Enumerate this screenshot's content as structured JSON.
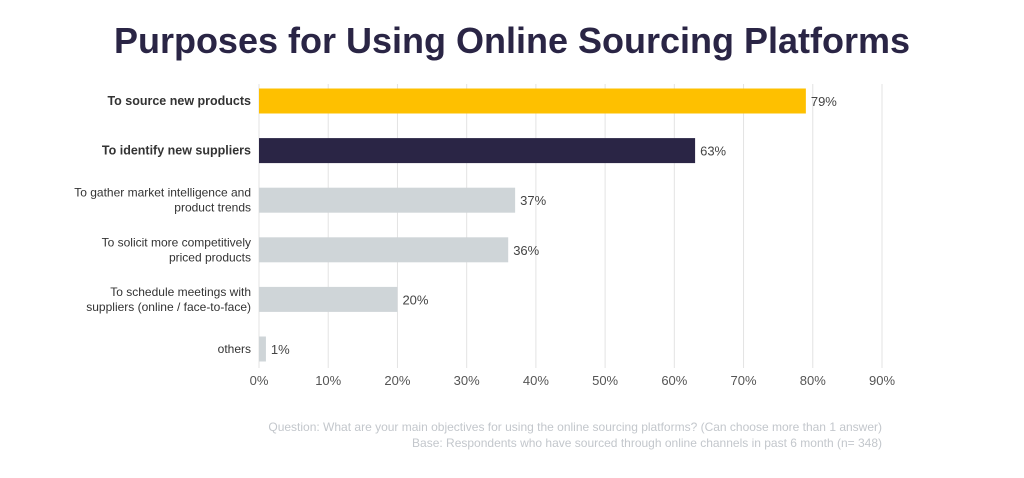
{
  "chart_data": {
    "type": "bar",
    "orientation": "horizontal",
    "title": "Purposes for Using Online Sourcing Platforms",
    "categories": [
      "To source new products",
      "To identify new suppliers",
      "To gather market intelligence and product trends",
      "To solicit more competitively priced products",
      "To schedule meetings with suppliers (online / face-to-face)",
      "others"
    ],
    "category_lines": [
      [
        "To source new products"
      ],
      [
        "To identify new suppliers"
      ],
      [
        "To gather market intelligence and",
        "product trends"
      ],
      [
        "To solicit more competitively",
        "priced products"
      ],
      [
        "To schedule meetings with",
        "suppliers (online / face-to-face)"
      ],
      [
        "others"
      ]
    ],
    "values": [
      79,
      63,
      37,
      36,
      20,
      1
    ],
    "value_labels": [
      "79%",
      "63%",
      "37%",
      "36%",
      "20%",
      "1%"
    ],
    "bar_colors": [
      "#fec000",
      "#2a2545",
      "#cfd5d8",
      "#cfd5d8",
      "#cfd5d8",
      "#cfd5d8"
    ],
    "bold_categories": [
      true,
      true,
      false,
      false,
      false,
      false
    ],
    "xlim": [
      0,
      90
    ],
    "x_ticks": [
      0,
      10,
      20,
      30,
      40,
      50,
      60,
      70,
      80,
      90
    ],
    "x_tick_labels": [
      "0%",
      "10%",
      "20%",
      "30%",
      "40%",
      "50%",
      "60%",
      "70%",
      "80%",
      "90%"
    ],
    "grid": "vertical",
    "xlabel": "",
    "ylabel": ""
  },
  "footnote": {
    "question": "Question: What are your main objectives for using the online sourcing platforms? (Can choose more than 1 answer)",
    "base": "Base: Respondents who have sourced through online channels in past 6 month  (n= 348)"
  }
}
